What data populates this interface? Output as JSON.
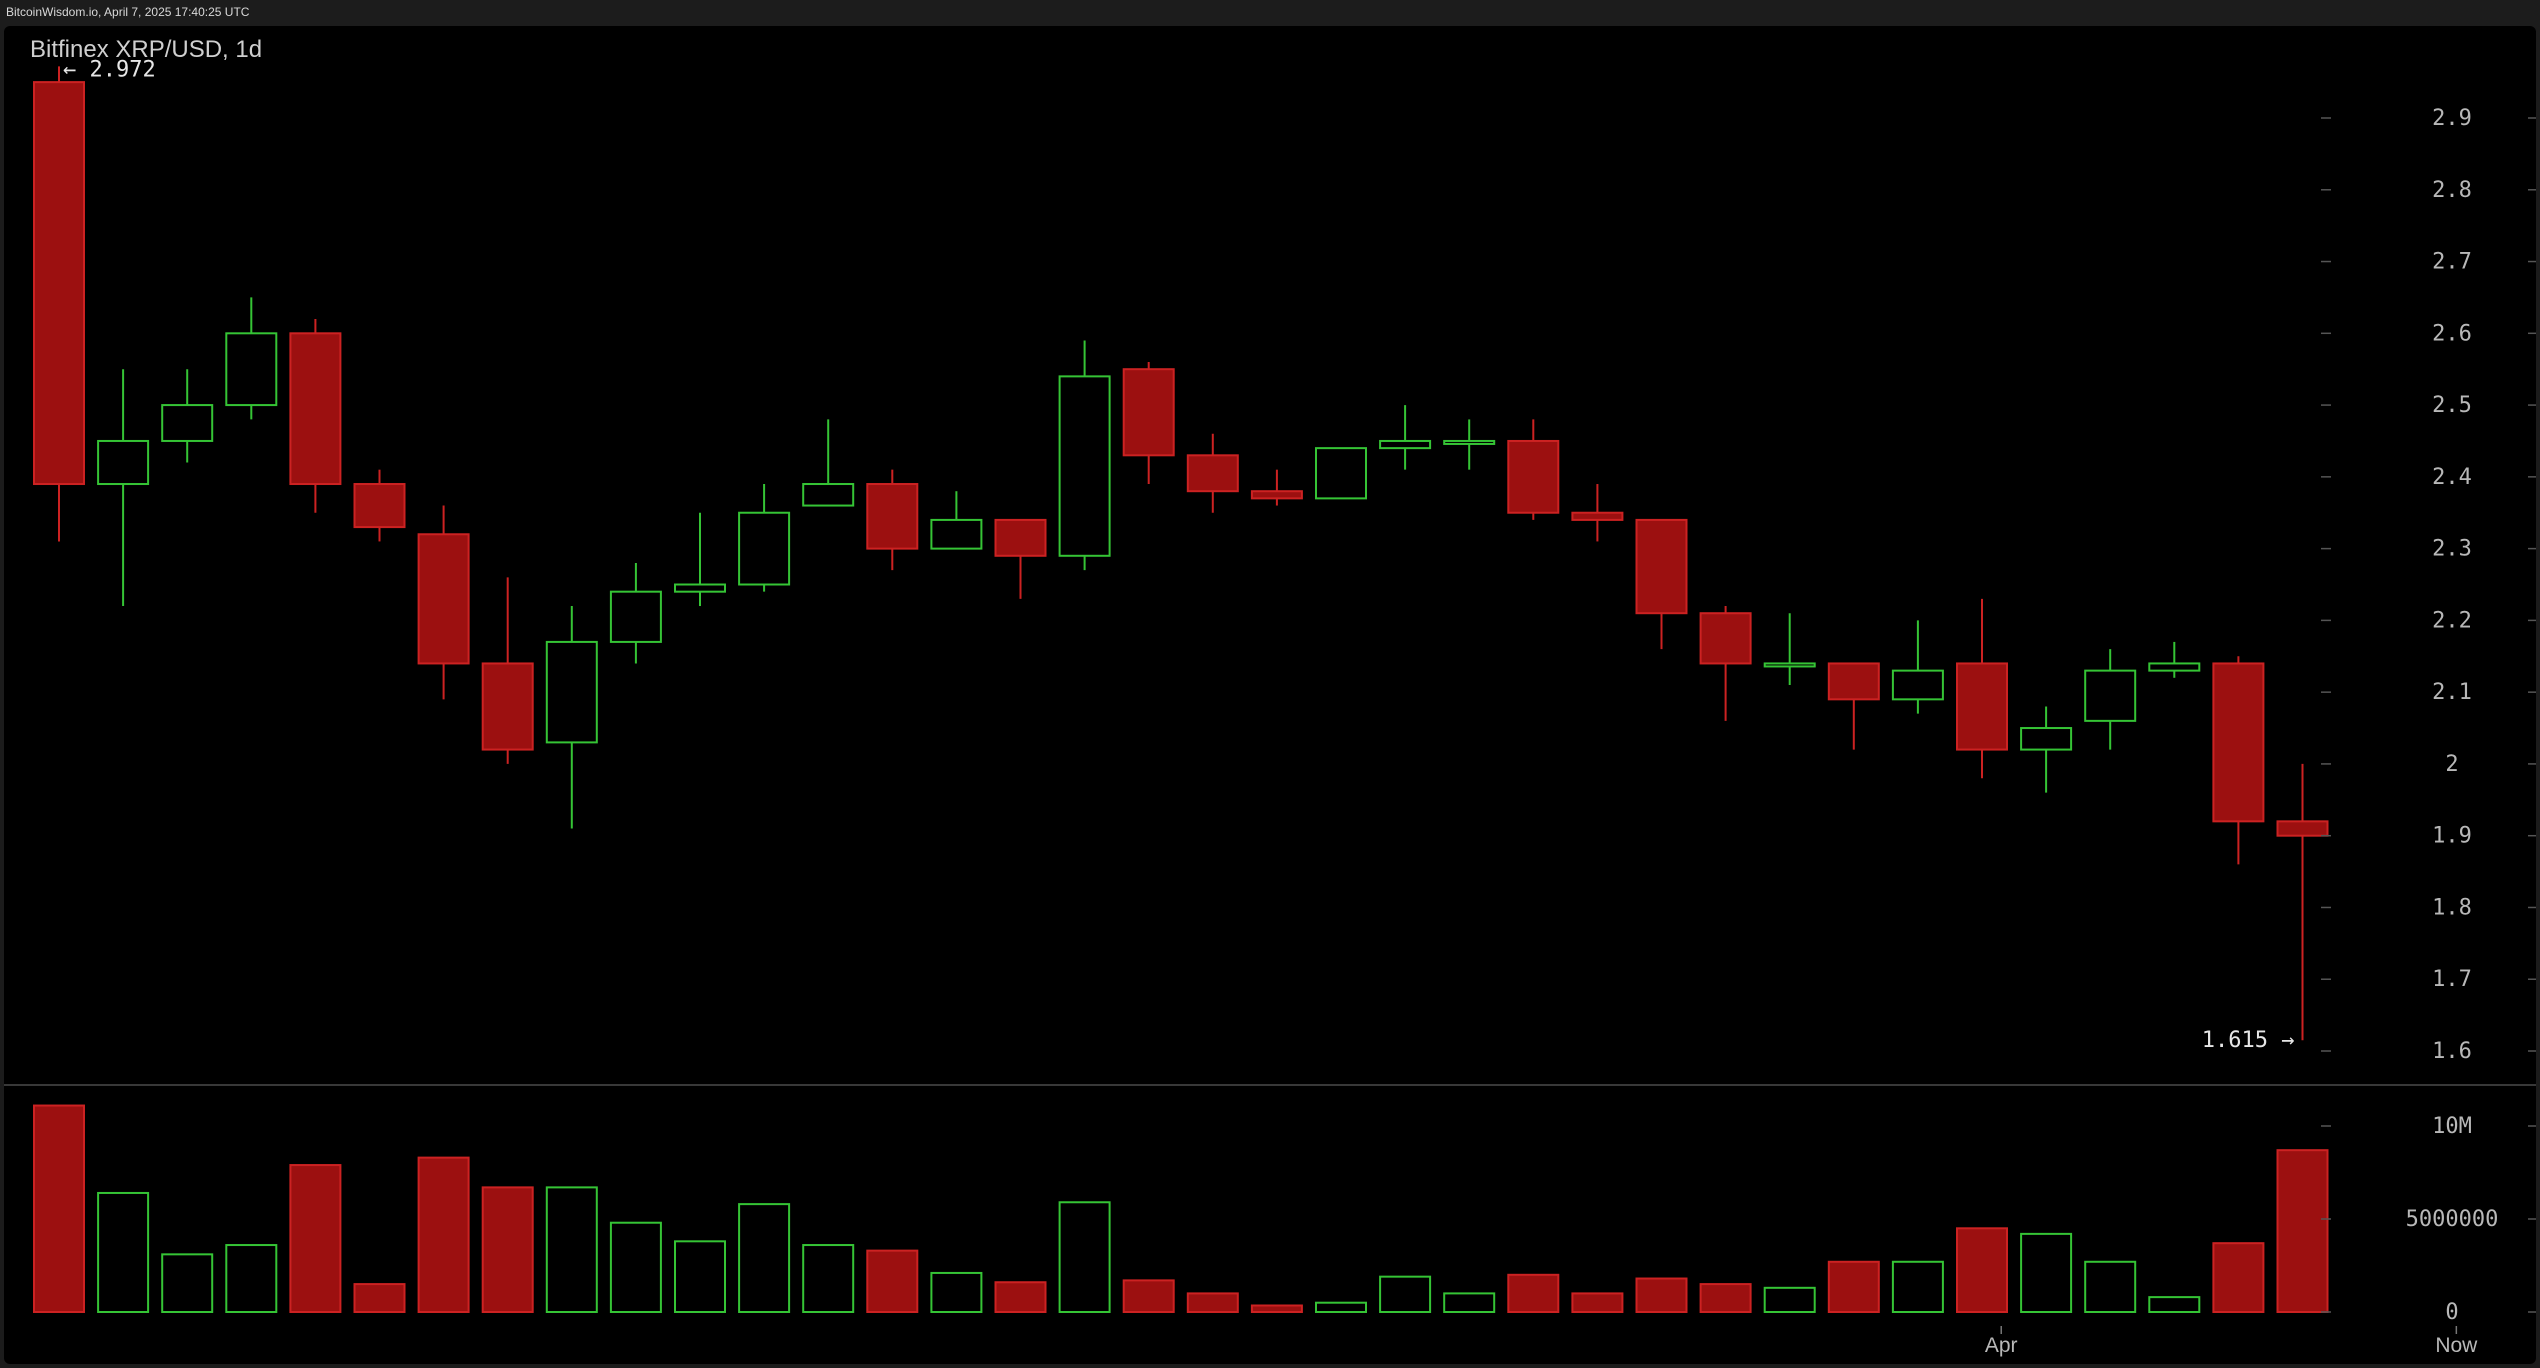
{
  "source": "BitcoinWisdom.io, April 7, 2025 17:40:25 UTC",
  "colors": {
    "background": "#000000",
    "up": "#35c435",
    "down": "#9c1010",
    "down_border": "#cc2222",
    "axis_text": "#b8b8b8",
    "annotation_text": "#e6e6e6",
    "separator": "#4a4a4a"
  },
  "chart_data": {
    "type": "candlestick",
    "title": "Bitfinex XRP/USD, 1d",
    "interval": "1d",
    "grid": false,
    "price_axis": {
      "position": "right",
      "ticks": [
        1.6,
        1.7,
        1.8,
        1.9,
        2,
        2.1,
        2.2,
        2.3,
        2.4,
        2.5,
        2.6,
        2.7,
        2.8,
        2.9
      ],
      "tick_labels": [
        "1.6",
        "1.7",
        "1.8",
        "1.9",
        "2",
        "2.1",
        "2.2",
        "2.3",
        "2.4",
        "2.5",
        "2.6",
        "2.7",
        "2.8",
        "2.9"
      ],
      "range": [
        1.6,
        2.9
      ]
    },
    "volume_axis": {
      "position": "right",
      "ticks": [
        0,
        5000000,
        10000000
      ],
      "tick_labels": [
        "0",
        "5000000",
        "10M"
      ],
      "range": [
        0,
        10000000
      ]
    },
    "time_axis_labels": [
      {
        "label": "Apr",
        "index": 30.3
      },
      {
        "label": "Now",
        "index": 37.4
      }
    ],
    "annotations": {
      "high": {
        "label": "← 2.972",
        "value": 2.972,
        "index": 0
      },
      "low": {
        "label": "1.615 →",
        "value": 1.615,
        "index": 35
      }
    },
    "candles": [
      {
        "open": 2.95,
        "high": 2.972,
        "low": 2.31,
        "close": 2.39,
        "volume": 11100000
      },
      {
        "open": 2.39,
        "high": 2.55,
        "low": 2.22,
        "close": 2.45,
        "volume": 6400000
      },
      {
        "open": 2.45,
        "high": 2.55,
        "low": 2.42,
        "close": 2.5,
        "volume": 3100000
      },
      {
        "open": 2.5,
        "high": 2.65,
        "low": 2.48,
        "close": 2.6,
        "volume": 3600000
      },
      {
        "open": 2.6,
        "high": 2.62,
        "low": 2.35,
        "close": 2.39,
        "volume": 7900000
      },
      {
        "open": 2.39,
        "high": 2.41,
        "low": 2.31,
        "close": 2.33,
        "volume": 1500000
      },
      {
        "open": 2.32,
        "high": 2.36,
        "low": 2.09,
        "close": 2.14,
        "volume": 8300000
      },
      {
        "open": 2.14,
        "high": 2.26,
        "low": 2.0,
        "close": 2.02,
        "volume": 6700000
      },
      {
        "open": 2.03,
        "high": 2.22,
        "low": 1.91,
        "close": 2.17,
        "volume": 6700000
      },
      {
        "open": 2.17,
        "high": 2.28,
        "low": 2.14,
        "close": 2.24,
        "volume": 4800000
      },
      {
        "open": 2.24,
        "high": 2.35,
        "low": 2.22,
        "close": 2.25,
        "volume": 3800000
      },
      {
        "open": 2.25,
        "high": 2.39,
        "low": 2.24,
        "close": 2.35,
        "volume": 5800000
      },
      {
        "open": 2.36,
        "high": 2.48,
        "low": 2.36,
        "close": 2.39,
        "volume": 3600000
      },
      {
        "open": 2.39,
        "high": 2.41,
        "low": 2.27,
        "close": 2.3,
        "volume": 3300000
      },
      {
        "open": 2.3,
        "high": 2.38,
        "low": 2.3,
        "close": 2.34,
        "volume": 2100000
      },
      {
        "open": 2.34,
        "high": 2.34,
        "low": 2.23,
        "close": 2.29,
        "volume": 1600000
      },
      {
        "open": 2.29,
        "high": 2.59,
        "low": 2.27,
        "close": 2.54,
        "volume": 5900000
      },
      {
        "open": 2.55,
        "high": 2.56,
        "low": 2.39,
        "close": 2.43,
        "volume": 1700000
      },
      {
        "open": 2.43,
        "high": 2.46,
        "low": 2.35,
        "close": 2.38,
        "volume": 1000000
      },
      {
        "open": 2.38,
        "high": 2.41,
        "low": 2.36,
        "close": 2.37,
        "volume": 350000
      },
      {
        "open": 2.37,
        "high": 2.44,
        "low": 2.37,
        "close": 2.44,
        "volume": 500000
      },
      {
        "open": 2.44,
        "high": 2.5,
        "low": 2.41,
        "close": 2.45,
        "volume": 1900000
      },
      {
        "open": 2.45,
        "high": 2.48,
        "low": 2.41,
        "close": 2.45,
        "volume": 1000000
      },
      {
        "open": 2.45,
        "high": 2.48,
        "low": 2.34,
        "close": 2.35,
        "volume": 2000000
      },
      {
        "open": 2.35,
        "high": 2.39,
        "low": 2.31,
        "close": 2.34,
        "volume": 1000000
      },
      {
        "open": 2.34,
        "high": 2.34,
        "low": 2.16,
        "close": 2.21,
        "volume": 1800000
      },
      {
        "open": 2.21,
        "high": 2.22,
        "low": 2.06,
        "close": 2.14,
        "volume": 1500000
      },
      {
        "open": 2.14,
        "high": 2.21,
        "low": 2.11,
        "close": 2.14,
        "volume": 1300000
      },
      {
        "open": 2.14,
        "high": 2.14,
        "low": 2.02,
        "close": 2.09,
        "volume": 2700000
      },
      {
        "open": 2.09,
        "high": 2.2,
        "low": 2.07,
        "close": 2.13,
        "volume": 2700000
      },
      {
        "open": 2.14,
        "high": 2.23,
        "low": 1.98,
        "close": 2.02,
        "volume": 4500000
      },
      {
        "open": 2.02,
        "high": 2.08,
        "low": 1.96,
        "close": 2.05,
        "volume": 4200000
      },
      {
        "open": 2.06,
        "high": 2.16,
        "low": 2.02,
        "close": 2.13,
        "volume": 2700000
      },
      {
        "open": 2.13,
        "high": 2.17,
        "low": 2.12,
        "close": 2.14,
        "volume": 800000
      },
      {
        "open": 2.14,
        "high": 2.15,
        "low": 1.86,
        "close": 1.92,
        "volume": 3700000
      },
      {
        "open": 1.92,
        "high": 2.0,
        "low": 1.615,
        "close": 1.9,
        "volume": 8700000
      }
    ]
  }
}
